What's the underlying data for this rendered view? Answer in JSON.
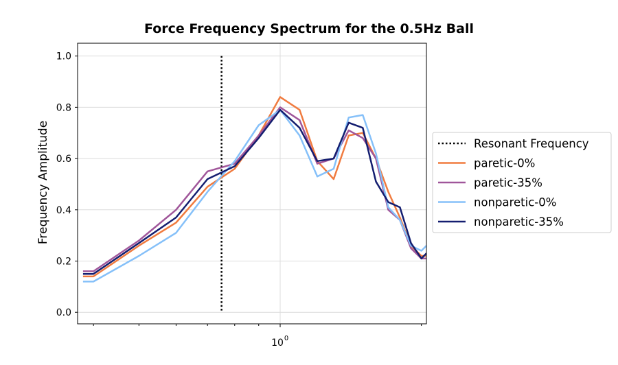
{
  "chart_data": {
    "type": "line",
    "title": "Force Frequency Spectrum for the 0.5Hz Ball",
    "xlabel": "",
    "ylabel": "Frequency Amplitude",
    "xscale": "log",
    "xlim": [
      0.37,
      2.05
    ],
    "ylim": [
      -0.045,
      1.05
    ],
    "yticks": [
      0.0,
      0.2,
      0.4,
      0.6,
      0.8,
      1.0
    ],
    "ytick_labels": [
      "0.0",
      "0.2",
      "0.4",
      "0.6",
      "0.8",
      "1.0"
    ],
    "xticks_major": [
      1.0
    ],
    "xtick_major_labels": [
      "10"
    ],
    "xtick_major_exponent": "0",
    "xticks_minor": [
      0.4,
      0.5,
      0.6,
      0.7,
      0.8,
      0.9,
      2.0
    ],
    "grid": true,
    "legend_position": "outside-right",
    "resonant_frequency": {
      "name": "Resonant Frequency",
      "x": 0.75,
      "y_range": [
        0.0,
        1.0
      ],
      "color": "#000000",
      "style": "dotted"
    },
    "series": [
      {
        "name": "paretic-0%",
        "color": "#f07b3f",
        "x": [
          0.38,
          0.4,
          0.5,
          0.6,
          0.7,
          0.8,
          0.9,
          1.0,
          1.1,
          1.2,
          1.3,
          1.4,
          1.5,
          1.6,
          1.7,
          1.8,
          1.9,
          2.0,
          2.05
        ],
        "y": [
          0.14,
          0.14,
          0.26,
          0.35,
          0.49,
          0.56,
          0.69,
          0.84,
          0.79,
          0.59,
          0.52,
          0.69,
          0.7,
          0.6,
          0.47,
          0.37,
          0.26,
          0.22,
          0.22
        ]
      },
      {
        "name": "paretic-35%",
        "color": "#a0569a",
        "x": [
          0.38,
          0.4,
          0.5,
          0.6,
          0.7,
          0.8,
          0.9,
          1.0,
          1.1,
          1.2,
          1.3,
          1.4,
          1.5,
          1.6,
          1.7,
          1.8,
          1.9,
          2.0,
          2.05
        ],
        "y": [
          0.16,
          0.16,
          0.28,
          0.4,
          0.55,
          0.58,
          0.69,
          0.8,
          0.75,
          0.58,
          0.6,
          0.71,
          0.68,
          0.6,
          0.4,
          0.36,
          0.25,
          0.21,
          0.21
        ]
      },
      {
        "name": "nonparetic-0%",
        "color": "#85c0f9",
        "x": [
          0.38,
          0.4,
          0.5,
          0.6,
          0.7,
          0.8,
          0.9,
          1.0,
          1.1,
          1.2,
          1.3,
          1.4,
          1.5,
          1.6,
          1.7,
          1.8,
          1.9,
          2.0,
          2.05
        ],
        "y": [
          0.12,
          0.12,
          0.22,
          0.31,
          0.47,
          0.59,
          0.73,
          0.79,
          0.69,
          0.53,
          0.56,
          0.76,
          0.77,
          0.62,
          0.41,
          0.36,
          0.26,
          0.24,
          0.26
        ]
      },
      {
        "name": "nonparetic-35%",
        "color": "#141e70",
        "x": [
          0.38,
          0.4,
          0.5,
          0.6,
          0.7,
          0.8,
          0.9,
          1.0,
          1.1,
          1.2,
          1.3,
          1.4,
          1.5,
          1.6,
          1.7,
          1.8,
          1.9,
          2.0,
          2.05
        ],
        "y": [
          0.15,
          0.15,
          0.27,
          0.37,
          0.52,
          0.57,
          0.68,
          0.79,
          0.72,
          0.59,
          0.6,
          0.74,
          0.72,
          0.51,
          0.43,
          0.41,
          0.27,
          0.21,
          0.23
        ]
      }
    ]
  }
}
